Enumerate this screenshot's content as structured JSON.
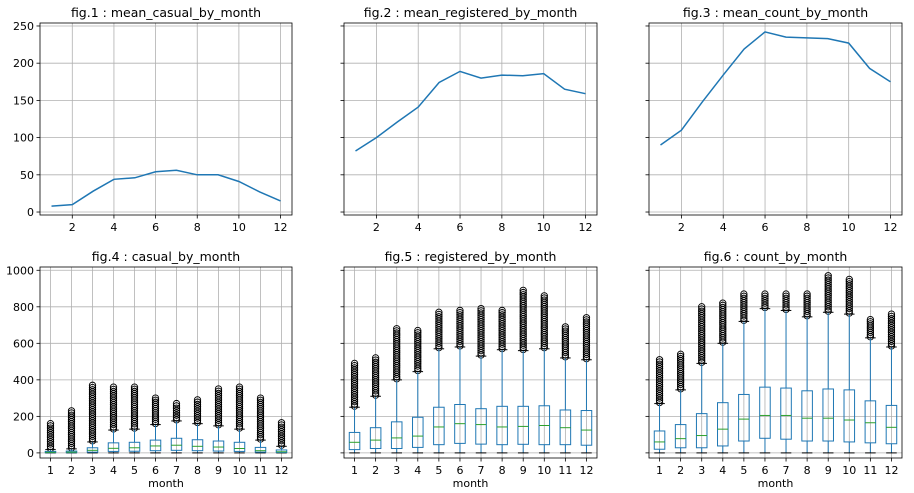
{
  "chart_data": [
    {
      "type": "line",
      "title": "fig.1 : mean_casual_by_month",
      "xlabel": "",
      "x": [
        1,
        2,
        3,
        4,
        5,
        6,
        7,
        8,
        9,
        10,
        11,
        12
      ],
      "y": [
        8,
        10,
        28,
        44,
        46,
        54,
        56,
        50,
        50,
        41,
        27,
        15
      ],
      "xlim": [
        0.45,
        12.55
      ],
      "ylim": [
        -4,
        254
      ],
      "xticks": [
        2,
        4,
        6,
        8,
        10,
        12
      ],
      "yticks": [
        0,
        50,
        100,
        150,
        200,
        250
      ],
      "grid": true,
      "color": "#1f77b4"
    },
    {
      "type": "line",
      "title": "fig.2 : mean_registered_by_month",
      "xlabel": "",
      "x": [
        1,
        2,
        3,
        4,
        5,
        6,
        7,
        8,
        9,
        10,
        11,
        12
      ],
      "y": [
        82,
        100,
        121,
        141,
        174,
        189,
        180,
        184,
        183,
        186,
        165,
        159
      ],
      "xlim": [
        0.45,
        12.55
      ],
      "ylim": [
        -4,
        254
      ],
      "xticks": [
        2,
        4,
        6,
        8,
        10,
        12
      ],
      "grid": true,
      "color": "#1f77b4"
    },
    {
      "type": "line",
      "title": "fig.3 : mean_count_by_month",
      "xlabel": "",
      "x": [
        1,
        2,
        3,
        4,
        5,
        6,
        7,
        8,
        9,
        10,
        11,
        12
      ],
      "y": [
        90,
        110,
        148,
        184,
        219,
        242,
        235,
        234,
        233,
        227,
        193,
        175
      ],
      "xlim": [
        0.45,
        12.55
      ],
      "ylim": [
        -4,
        254
      ],
      "xticks": [
        2,
        4,
        6,
        8,
        10,
        12
      ],
      "grid": true,
      "color": "#1f77b4"
    },
    {
      "type": "box",
      "title": "fig.4 : casual_by_month",
      "xlabel": "month",
      "categories": [
        "1",
        "2",
        "3",
        "4",
        "5",
        "6",
        "7",
        "8",
        "9",
        "10",
        "11",
        "12"
      ],
      "boxes": [
        {
          "whislo": 0,
          "q1": 1,
          "med": 3,
          "q3": 8,
          "whishi": 18,
          "fliers_max": 160
        },
        {
          "whislo": 0,
          "q1": 1,
          "med": 4,
          "q3": 10,
          "whishi": 22,
          "fliers_max": 230
        },
        {
          "whislo": 0,
          "q1": 4,
          "med": 14,
          "q3": 28,
          "whishi": 60,
          "fliers_max": 370
        },
        {
          "whislo": 0,
          "q1": 8,
          "med": 25,
          "q3": 55,
          "whishi": 125,
          "fliers_max": 360
        },
        {
          "whislo": 0,
          "q1": 9,
          "med": 28,
          "q3": 58,
          "whishi": 130,
          "fliers_max": 360
        },
        {
          "whislo": 0,
          "q1": 12,
          "med": 38,
          "q3": 70,
          "whishi": 155,
          "fliers_max": 300
        },
        {
          "whislo": 0,
          "q1": 14,
          "med": 42,
          "q3": 80,
          "whishi": 175,
          "fliers_max": 270
        },
        {
          "whislo": 0,
          "q1": 12,
          "med": 36,
          "q3": 72,
          "whishi": 160,
          "fliers_max": 290
        },
        {
          "whislo": 0,
          "q1": 10,
          "med": 32,
          "q3": 65,
          "whishi": 148,
          "fliers_max": 350
        },
        {
          "whislo": 0,
          "q1": 8,
          "med": 24,
          "q3": 58,
          "whishi": 130,
          "fliers_max": 360
        },
        {
          "whislo": 0,
          "q1": 4,
          "med": 12,
          "q3": 30,
          "whishi": 70,
          "fliers_max": 300
        },
        {
          "whislo": 0,
          "q1": 2,
          "med": 6,
          "q3": 16,
          "whishi": 36,
          "fliers_max": 165
        }
      ],
      "ylim": [
        -28,
        1018
      ],
      "yticks": [
        0,
        200,
        400,
        600,
        800,
        1000
      ],
      "grid": true
    },
    {
      "type": "box",
      "title": "fig.5 : registered_by_month",
      "xlabel": "month",
      "categories": [
        "1",
        "2",
        "3",
        "4",
        "5",
        "6",
        "7",
        "8",
        "9",
        "10",
        "11",
        "12"
      ],
      "boxes": [
        {
          "whislo": 0,
          "q1": 18,
          "med": 58,
          "q3": 112,
          "whishi": 250,
          "fliers_max": 490
        },
        {
          "whislo": 0,
          "q1": 24,
          "med": 70,
          "q3": 138,
          "whishi": 310,
          "fliers_max": 520
        },
        {
          "whislo": 0,
          "q1": 24,
          "med": 82,
          "q3": 170,
          "whishi": 400,
          "fliers_max": 680
        },
        {
          "whislo": 0,
          "q1": 30,
          "med": 92,
          "q3": 195,
          "whishi": 445,
          "fliers_max": 670
        },
        {
          "whislo": 0,
          "q1": 45,
          "med": 142,
          "q3": 250,
          "whishi": 570,
          "fliers_max": 770
        },
        {
          "whislo": 0,
          "q1": 52,
          "med": 160,
          "q3": 265,
          "whishi": 580,
          "fliers_max": 780
        },
        {
          "whislo": 0,
          "q1": 48,
          "med": 155,
          "q3": 242,
          "whishi": 530,
          "fliers_max": 790
        },
        {
          "whislo": 0,
          "q1": 45,
          "med": 142,
          "q3": 255,
          "whishi": 565,
          "fliers_max": 780
        },
        {
          "whislo": 0,
          "q1": 47,
          "med": 145,
          "q3": 255,
          "whishi": 560,
          "fliers_max": 890
        },
        {
          "whislo": 0,
          "q1": 45,
          "med": 150,
          "q3": 258,
          "whishi": 570,
          "fliers_max": 860
        },
        {
          "whislo": 0,
          "q1": 45,
          "med": 138,
          "q3": 235,
          "whishi": 520,
          "fliers_max": 690
        },
        {
          "whislo": 0,
          "q1": 42,
          "med": 125,
          "q3": 232,
          "whishi": 510,
          "fliers_max": 740
        }
      ],
      "ylim": [
        -28,
        1018
      ],
      "grid": true
    },
    {
      "type": "box",
      "title": "fig.6 : count_by_month",
      "xlabel": "month",
      "categories": [
        "1",
        "2",
        "3",
        "4",
        "5",
        "6",
        "7",
        "8",
        "9",
        "10",
        "11",
        "12"
      ],
      "boxes": [
        {
          "whislo": 0,
          "q1": 20,
          "med": 60,
          "q3": 120,
          "whishi": 270,
          "fliers_max": 510
        },
        {
          "whislo": 0,
          "q1": 28,
          "med": 78,
          "q3": 155,
          "whishi": 345,
          "fliers_max": 540
        },
        {
          "whislo": 0,
          "q1": 28,
          "med": 95,
          "q3": 215,
          "whishi": 490,
          "fliers_max": 800
        },
        {
          "whislo": 0,
          "q1": 38,
          "med": 130,
          "q3": 275,
          "whishi": 600,
          "fliers_max": 820
        },
        {
          "whislo": 0,
          "q1": 65,
          "med": 185,
          "q3": 320,
          "whishi": 720,
          "fliers_max": 870
        },
        {
          "whislo": 0,
          "q1": 80,
          "med": 205,
          "q3": 360,
          "whishi": 790,
          "fliers_max": 870
        },
        {
          "whislo": 0,
          "q1": 75,
          "med": 205,
          "q3": 355,
          "whishi": 780,
          "fliers_max": 870
        },
        {
          "whislo": 0,
          "q1": 65,
          "med": 190,
          "q3": 340,
          "whishi": 745,
          "fliers_max": 870
        },
        {
          "whislo": 0,
          "q1": 65,
          "med": 190,
          "q3": 350,
          "whishi": 770,
          "fliers_max": 970
        },
        {
          "whislo": 0,
          "q1": 60,
          "med": 180,
          "q3": 345,
          "whishi": 760,
          "fliers_max": 950
        },
        {
          "whislo": 0,
          "q1": 55,
          "med": 165,
          "q3": 285,
          "whishi": 630,
          "fliers_max": 730
        },
        {
          "whislo": 0,
          "q1": 50,
          "med": 140,
          "q3": 260,
          "whishi": 580,
          "fliers_max": 760
        }
      ],
      "ylim": [
        -28,
        1018
      ],
      "grid": true
    }
  ],
  "colors": {
    "line": "#1f77b4",
    "box": "#1f77b4",
    "median": "#2ca02c",
    "grid": "#b0b0b0",
    "axis": "#000000"
  }
}
